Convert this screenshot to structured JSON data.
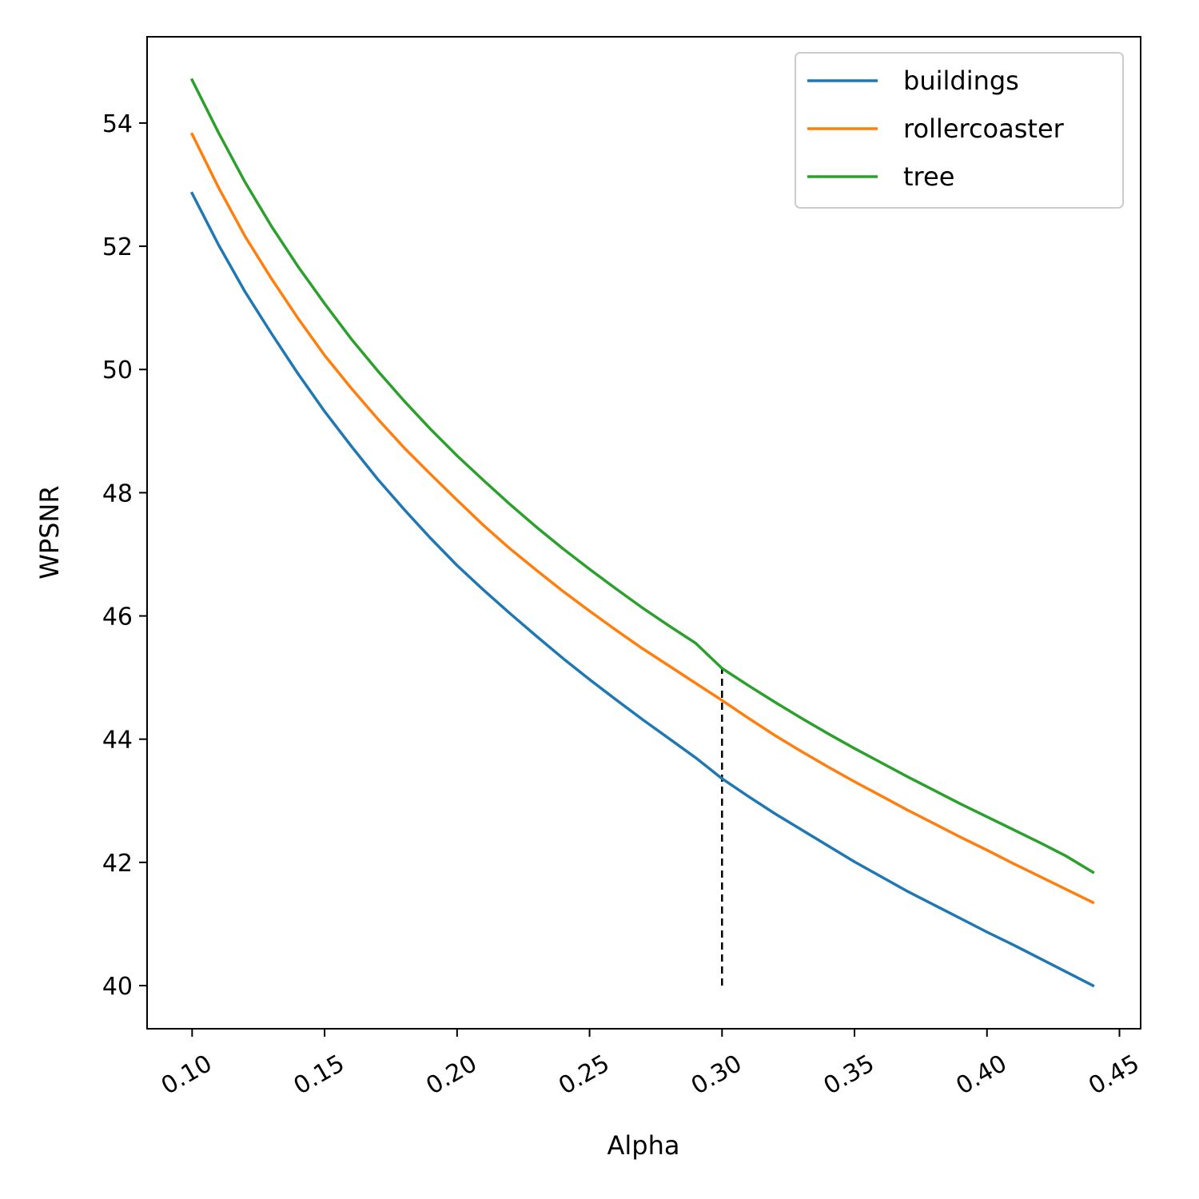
{
  "chart_data": {
    "type": "line",
    "title": "",
    "xlabel": "Alpha",
    "ylabel": "WPSNR",
    "xlim": [
      0.083,
      0.458
    ],
    "ylim": [
      39.3,
      55.4
    ],
    "xticks": [
      0.1,
      0.15,
      0.2,
      0.25,
      0.3,
      0.35,
      0.4,
      0.45
    ],
    "xtick_labels": [
      "0.10",
      "0.15",
      "0.20",
      "0.25",
      "0.30",
      "0.35",
      "0.40",
      "0.45"
    ],
    "yticks": [
      40,
      42,
      44,
      46,
      48,
      50,
      52,
      54
    ],
    "ytick_labels": [
      "40",
      "42",
      "44",
      "46",
      "48",
      "50",
      "52",
      "54"
    ],
    "grid": false,
    "legend_position": "top-right",
    "x": [
      0.1,
      0.11,
      0.12,
      0.13,
      0.14,
      0.15,
      0.16,
      0.17,
      0.18,
      0.19,
      0.2,
      0.21,
      0.22,
      0.23,
      0.24,
      0.25,
      0.26,
      0.27,
      0.28,
      0.29,
      0.3,
      0.31,
      0.32,
      0.33,
      0.34,
      0.35,
      0.36,
      0.37,
      0.38,
      0.39,
      0.4,
      0.41,
      0.42,
      0.43,
      0.44
    ],
    "series": [
      {
        "name": "buildings",
        "color": "#1f77b4",
        "values": [
          52.86,
          52.02,
          51.26,
          50.58,
          49.93,
          49.32,
          48.76,
          48.22,
          47.73,
          47.26,
          46.82,
          46.42,
          46.04,
          45.67,
          45.31,
          44.97,
          44.64,
          44.32,
          44.01,
          43.7,
          43.36,
          43.07,
          42.79,
          42.53,
          42.27,
          42.01,
          41.77,
          41.53,
          41.31,
          41.09,
          40.87,
          40.66,
          40.44,
          40.22,
          40.0
        ]
      },
      {
        "name": "rollercoaster",
        "color": "#ff7f0e",
        "values": [
          53.82,
          52.95,
          52.16,
          51.47,
          50.83,
          50.23,
          49.7,
          49.2,
          48.73,
          48.3,
          47.88,
          47.47,
          47.09,
          46.74,
          46.4,
          46.08,
          45.77,
          45.47,
          45.19,
          44.91,
          44.63,
          44.34,
          44.06,
          43.8,
          43.55,
          43.31,
          43.08,
          42.85,
          42.63,
          42.41,
          42.2,
          41.98,
          41.77,
          41.56,
          41.35
        ]
      },
      {
        "name": "tree",
        "color": "#2ca02c",
        "values": [
          54.7,
          53.84,
          53.04,
          52.32,
          51.67,
          51.07,
          50.5,
          49.98,
          49.49,
          49.03,
          48.6,
          48.2,
          47.81,
          47.44,
          47.09,
          46.76,
          46.44,
          46.13,
          45.84,
          45.56,
          45.15,
          44.87,
          44.6,
          44.34,
          44.09,
          43.85,
          43.62,
          43.39,
          43.17,
          42.95,
          42.74,
          42.53,
          42.32,
          42.1,
          41.84
        ]
      }
    ],
    "annotations": [
      {
        "type": "vline",
        "x": 0.3,
        "y_from": 40.0,
        "y_to": 45.15,
        "style": "dashed",
        "color": "#000000"
      }
    ]
  }
}
